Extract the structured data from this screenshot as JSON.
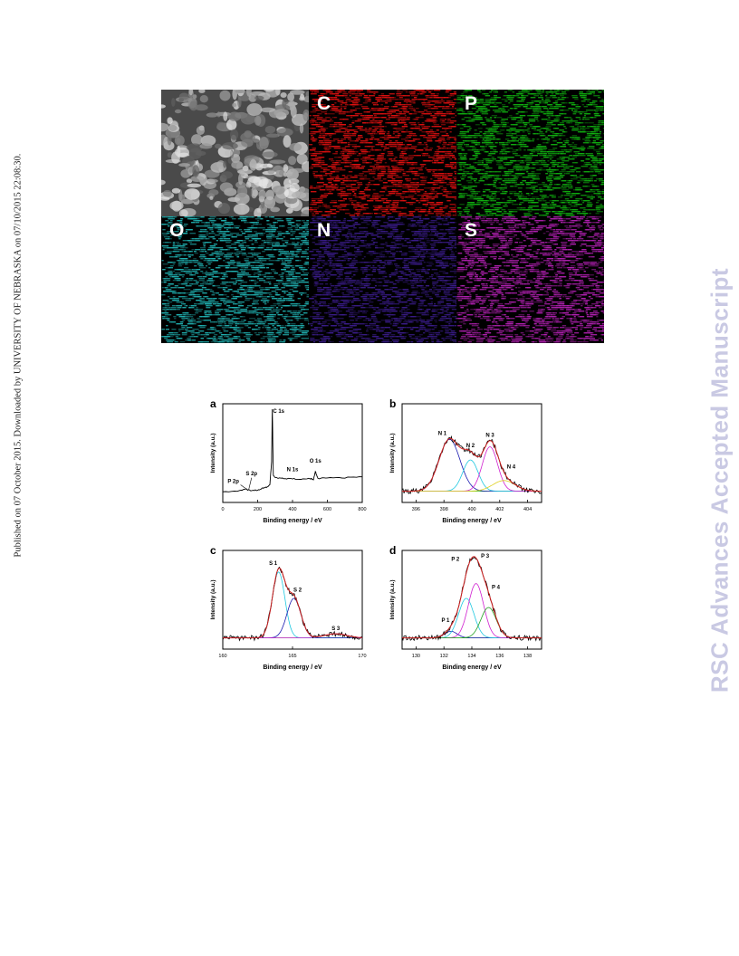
{
  "side_note": "Published on 07 October 2015. Downloaded by UNIVERSITY OF NEBRASKA on 07/10/2015 22:08:30.",
  "watermark": "RSC Advances Accepted Manuscript",
  "eds_maps": [
    {
      "label": "",
      "content": "SEM",
      "color": "#8a8a8a"
    },
    {
      "label": "C",
      "content": "element-map",
      "color": "#e01010"
    },
    {
      "label": "P",
      "content": "element-map",
      "color": "#10b010"
    },
    {
      "label": "O",
      "content": "element-map",
      "color": "#20b0b0"
    },
    {
      "label": "N",
      "content": "element-map",
      "color": "#3a1c8a"
    },
    {
      "label": "S",
      "content": "element-map",
      "color": "#b020b0"
    }
  ],
  "chart_data": [
    {
      "type": "line",
      "panel_label": "a",
      "xlabel": "Binding energy / eV",
      "ylabel": "Intensity (a.u.)",
      "xlim": [
        0,
        800
      ],
      "xticks": [
        "0",
        "200",
        "400",
        "600",
        "800"
      ],
      "series": [
        {
          "x": [
            0,
            100,
            135,
            160,
            200,
            230,
            250,
            270,
            280,
            284,
            290,
            300,
            350,
            400,
            450,
            500,
            520,
            531,
            545,
            600,
            700,
            800
          ],
          "y": [
            0.06,
            0.07,
            0.09,
            0.07,
            0.08,
            0.1,
            0.11,
            0.14,
            0.4,
            1.0,
            0.25,
            0.22,
            0.21,
            0.21,
            0.2,
            0.21,
            0.2,
            0.29,
            0.21,
            0.22,
            0.22,
            0.23
          ]
        }
      ],
      "annotations": [
        {
          "text": "C 1s",
          "x": 284
        },
        {
          "text": "S 2p",
          "x": 165
        },
        {
          "text": "P 2p",
          "x": 133
        },
        {
          "text": "N 1s",
          "x": 400
        },
        {
          "text": "O 1s",
          "x": 531
        }
      ]
    },
    {
      "type": "line",
      "panel_label": "b",
      "xlabel": "Binding energy / eV",
      "ylabel": "Intensity (a.u.)",
      "xlim": [
        395,
        405
      ],
      "xticks": [
        "396",
        "398",
        "400",
        "402",
        "404"
      ],
      "series": [
        {
          "name": "N 1",
          "center": 398.4,
          "height": 0.63,
          "width": 0.75,
          "color": "#1a1ab0"
        },
        {
          "name": "N 2",
          "center": 399.9,
          "height": 0.38,
          "width": 0.55,
          "color": "#20c8e0"
        },
        {
          "name": "N 3",
          "center": 401.3,
          "height": 0.54,
          "width": 0.55,
          "color": "#d020d0"
        },
        {
          "name": "N 4",
          "center": 402.3,
          "height": 0.13,
          "width": 0.8,
          "color": "#e0d020"
        }
      ]
    },
    {
      "type": "line",
      "panel_label": "c",
      "xlabel": "Binding energy / eV",
      "ylabel": "Intensity (a.u.)",
      "xlim": [
        160,
        170
      ],
      "xticks": [
        "160",
        "165",
        "170"
      ],
      "series": [
        {
          "name": "S 1",
          "center": 164.0,
          "height": 0.8,
          "width": 0.45,
          "color": "#20c8e0"
        },
        {
          "name": "S 2",
          "center": 165.1,
          "height": 0.48,
          "width": 0.5,
          "color": "#1a1ab0"
        },
        {
          "name": "S 3",
          "center": 168.1,
          "height": 0.05,
          "width": 0.8,
          "color": "#d020d0"
        }
      ]
    },
    {
      "type": "line",
      "panel_label": "d",
      "xlabel": "Binding energy / eV",
      "ylabel": "Intensity (a.u.)",
      "xlim": [
        129,
        139
      ],
      "xticks": [
        "130",
        "132",
        "134",
        "136",
        "138"
      ],
      "series": [
        {
          "name": "P 1",
          "center": 132.5,
          "height": 0.08,
          "width": 0.45,
          "color": "#1a1ab0"
        },
        {
          "name": "P 2",
          "center": 133.6,
          "height": 0.48,
          "width": 0.55,
          "color": "#20c8e0"
        },
        {
          "name": "P 3",
          "center": 134.3,
          "height": 0.66,
          "width": 0.55,
          "color": "#d020d0"
        },
        {
          "name": "P 4",
          "center": 135.2,
          "height": 0.37,
          "width": 0.55,
          "color": "#20a020"
        }
      ]
    }
  ]
}
